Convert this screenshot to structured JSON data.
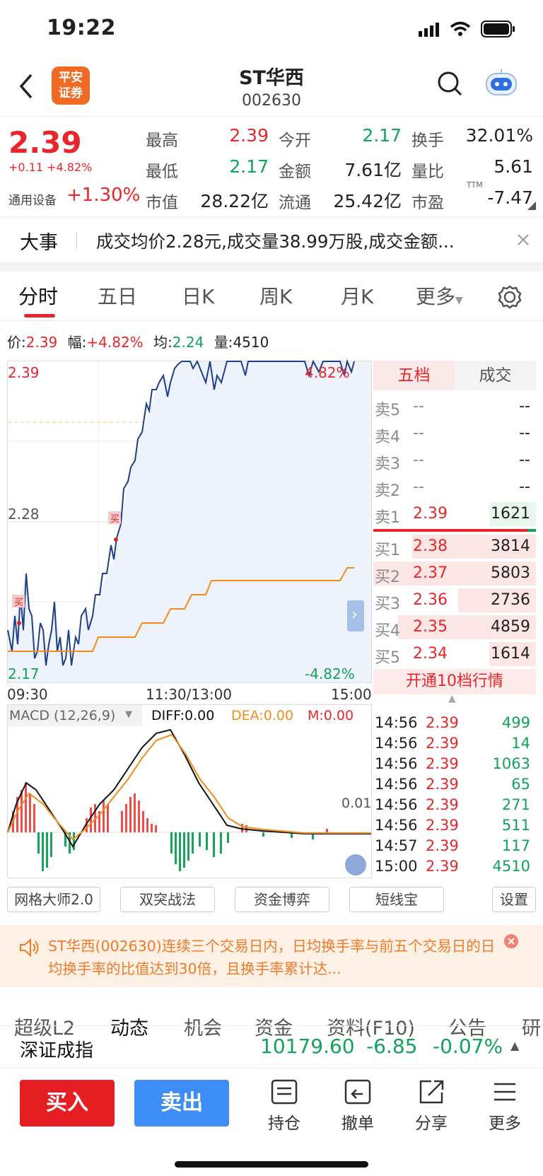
{
  "status_bar": {
    "time": "19:22"
  },
  "header": {
    "logo_text_1": "平安",
    "logo_text_2": "证券",
    "title": "ST华西",
    "code": "002630"
  },
  "quote": {
    "price": "2.39",
    "change": "+0.11",
    "change_pct": "+4.82%",
    "sector_name": "通用设备",
    "sector_change": "+1.30%",
    "fields": [
      {
        "label": "最高",
        "value": "2.39",
        "color": "red"
      },
      {
        "label": "今开",
        "value": "2.17",
        "color": "green"
      },
      {
        "label": "换手",
        "value": "32.01%",
        "color": "black"
      },
      {
        "label": "最低",
        "value": "2.17",
        "color": "green"
      },
      {
        "label": "金额",
        "value": "7.61亿",
        "color": "black"
      },
      {
        "label": "量比",
        "value": "5.61",
        "color": "black"
      },
      {
        "label": "市值",
        "value": "28.22亿",
        "color": "black"
      },
      {
        "label": "流通",
        "value": "25.42亿",
        "color": "black"
      },
      {
        "label": "市盈",
        "value": "-7.47",
        "color": "black",
        "sup": "TTM"
      }
    ]
  },
  "news_banner": {
    "tag": "大事",
    "text": "成交均价2.28元,成交量38.99万股,成交金额..."
  },
  "tabs": [
    "分时",
    "五日",
    "日K",
    "周K",
    "月K",
    "更多"
  ],
  "info_line": {
    "price_label": "价:",
    "price": "2.39",
    "amp_label": "幅:",
    "amp": "+4.82%",
    "avg_label": "均:",
    "avg": "2.24",
    "vol_label": "量:",
    "vol": "4510"
  },
  "chart": {
    "top_price": "2.39",
    "mid_price": "2.28",
    "bottom_price": "2.17",
    "top_pct": "4.82%",
    "bottom_pct": "-4.82%",
    "time_start": "09:30",
    "time_mid": "11:30/13:00",
    "time_end": "15:00",
    "buy_mark": "买"
  },
  "macd": {
    "label": "MACD (12,26,9)",
    "diff": "DIFF:0.00",
    "dea": "DEA:0.00",
    "m": "M:0.00",
    "scale": "0.01"
  },
  "order_book": {
    "tabs": [
      "五档",
      "成交"
    ],
    "asks": [
      {
        "label": "卖5",
        "price": "--",
        "vol": "--"
      },
      {
        "label": "卖4",
        "price": "--",
        "vol": "--"
      },
      {
        "label": "卖3",
        "price": "--",
        "vol": "--"
      },
      {
        "label": "卖2",
        "price": "--",
        "vol": "--"
      },
      {
        "label": "卖1",
        "price": "2.39",
        "vol": "1621"
      }
    ],
    "bids": [
      {
        "label": "买1",
        "price": "2.38",
        "vol": "3814"
      },
      {
        "label": "买2",
        "price": "2.37",
        "vol": "5803"
      },
      {
        "label": "买3",
        "price": "2.36",
        "vol": "2736"
      },
      {
        "label": "买4",
        "price": "2.35",
        "vol": "4859"
      },
      {
        "label": "买5",
        "price": "2.34",
        "vol": "1614"
      }
    ],
    "upgrade": "开通10档行情"
  },
  "trades": [
    {
      "time": "14:56",
      "price": "2.39",
      "vol": "499"
    },
    {
      "time": "14:56",
      "price": "2.39",
      "vol": "14"
    },
    {
      "time": "14:56",
      "price": "2.39",
      "vol": "1063"
    },
    {
      "time": "14:56",
      "price": "2.39",
      "vol": "65"
    },
    {
      "time": "14:56",
      "price": "2.39",
      "vol": "271"
    },
    {
      "time": "14:56",
      "price": "2.39",
      "vol": "511"
    },
    {
      "time": "14:57",
      "price": "2.39",
      "vol": "117"
    },
    {
      "time": "15:00",
      "price": "2.39",
      "vol": "4510"
    }
  ],
  "tools": [
    "网格大师2.0",
    "双突战法",
    "资金博弈",
    "短线宝",
    "设置"
  ],
  "notice": {
    "text": "ST华西(002630)连续三个交易日内，日均换手率与前五个交易日的日均换手率的比值达到30倍，且换手率累计达..."
  },
  "sub_tabs": [
    "超级L2",
    "动态",
    "机会",
    "资金",
    "资料(F10)",
    "公告",
    "研"
  ],
  "index": {
    "name": "深证成指",
    "value": "10179.60",
    "change": "-6.85",
    "pct": "-0.07%"
  },
  "bottom": {
    "buy": "买入",
    "sell": "卖出",
    "items": [
      "持仓",
      "撤单",
      "分享",
      "更多"
    ]
  },
  "colors": {
    "red": "#e8262b",
    "green": "#12a35a",
    "orange": "#f16a23",
    "blue": "#3f8ef7"
  }
}
